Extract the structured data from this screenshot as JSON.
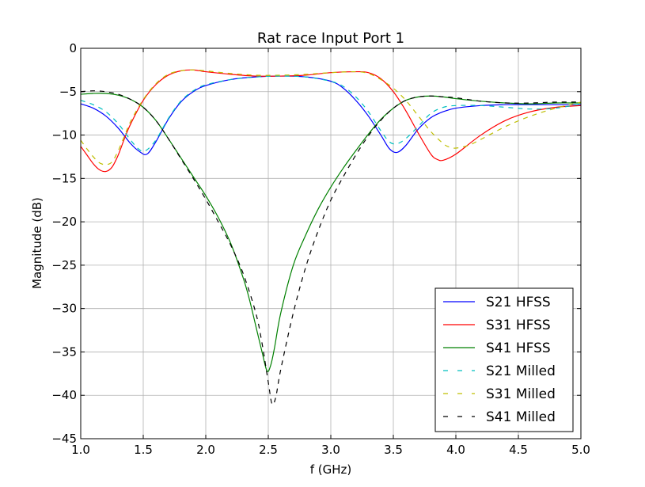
{
  "chart_data": {
    "type": "line",
    "title": "Rat race Input Port 1",
    "xlabel": "f (GHz)",
    "ylabel": "Magnitude (dB)",
    "xlim": [
      1.0,
      5.0
    ],
    "ylim": [
      -45,
      0
    ],
    "xticks": [
      "1.0",
      "1.5",
      "2.0",
      "2.5",
      "3.0",
      "3.5",
      "4.0",
      "4.5",
      "5.0"
    ],
    "yticks": [
      "0",
      "−5",
      "−10",
      "−15",
      "−20",
      "−25",
      "−30",
      "−35",
      "−40",
      "−45"
    ],
    "grid": true,
    "legend_position": "lower-right",
    "series": [
      {
        "name": "S21 HFSS",
        "color": "#0000ff",
        "style": "solid",
        "x": [
          1.0,
          1.1,
          1.2,
          1.3,
          1.4,
          1.47,
          1.53,
          1.6,
          1.7,
          1.8,
          1.9,
          2.0,
          2.2,
          2.4,
          2.6,
          2.8,
          3.0,
          3.1,
          3.2,
          3.3,
          3.4,
          3.47,
          3.53,
          3.6,
          3.7,
          3.8,
          3.9,
          4.0,
          4.2,
          4.4,
          4.6,
          4.8,
          5.0
        ],
        "y": [
          -6.4,
          -6.9,
          -7.8,
          -9.2,
          -11.0,
          -11.9,
          -12.2,
          -10.8,
          -8.2,
          -6.2,
          -5.0,
          -4.3,
          -3.6,
          -3.3,
          -3.2,
          -3.3,
          -3.8,
          -4.6,
          -6.0,
          -7.8,
          -10.0,
          -11.6,
          -12.0,
          -11.2,
          -9.3,
          -8.0,
          -7.3,
          -6.9,
          -6.6,
          -6.5,
          -6.5,
          -6.5,
          -6.5
        ]
      },
      {
        "name": "S31 HFSS",
        "color": "#ff0000",
        "style": "solid",
        "x": [
          1.0,
          1.05,
          1.1,
          1.15,
          1.2,
          1.25,
          1.3,
          1.35,
          1.4,
          1.5,
          1.6,
          1.7,
          1.8,
          1.9,
          2.0,
          2.2,
          2.4,
          2.6,
          2.8,
          3.0,
          3.2,
          3.3,
          3.4,
          3.5,
          3.6,
          3.7,
          3.8,
          3.85,
          3.9,
          4.0,
          4.2,
          4.4,
          4.6,
          4.8,
          5.0
        ],
        "y": [
          -11.3,
          -12.3,
          -13.3,
          -14.0,
          -14.2,
          -13.7,
          -12.3,
          -10.4,
          -8.7,
          -6.0,
          -4.2,
          -3.1,
          -2.6,
          -2.5,
          -2.7,
          -3.0,
          -3.2,
          -3.2,
          -3.1,
          -2.8,
          -2.7,
          -2.8,
          -3.5,
          -5.0,
          -7.2,
          -9.8,
          -12.2,
          -12.8,
          -12.9,
          -12.2,
          -10.0,
          -8.3,
          -7.3,
          -6.8,
          -6.6
        ]
      },
      {
        "name": "S41 HFSS",
        "color": "#008000",
        "style": "solid",
        "x": [
          1.0,
          1.1,
          1.2,
          1.3,
          1.4,
          1.5,
          1.6,
          1.7,
          1.8,
          1.9,
          2.0,
          2.1,
          2.2,
          2.3,
          2.35,
          2.4,
          2.45,
          2.49,
          2.52,
          2.55,
          2.6,
          2.7,
          2.8,
          2.9,
          3.0,
          3.1,
          3.2,
          3.3,
          3.4,
          3.5,
          3.6,
          3.7,
          3.8,
          3.9,
          4.0,
          4.2,
          4.4,
          4.6,
          4.8,
          5.0
        ],
        "y": [
          -5.3,
          -5.2,
          -5.2,
          -5.4,
          -5.9,
          -6.8,
          -8.3,
          -10.4,
          -12.6,
          -14.8,
          -17.0,
          -19.5,
          -22.5,
          -26.5,
          -29.0,
          -32.0,
          -35.0,
          -37.2,
          -36.5,
          -34.5,
          -30.5,
          -25.0,
          -21.5,
          -18.5,
          -16.0,
          -13.8,
          -11.8,
          -9.9,
          -8.2,
          -6.9,
          -6.0,
          -5.6,
          -5.5,
          -5.6,
          -5.8,
          -6.1,
          -6.3,
          -6.4,
          -6.3,
          -6.3
        ]
      },
      {
        "name": "S21 Milled",
        "color": "#00bfbf",
        "style": "dashed",
        "x": [
          1.0,
          1.1,
          1.2,
          1.3,
          1.4,
          1.47,
          1.52,
          1.6,
          1.7,
          1.8,
          1.9,
          2.0,
          2.2,
          2.4,
          2.6,
          2.8,
          3.0,
          3.1,
          3.2,
          3.3,
          3.4,
          3.47,
          3.53,
          3.6,
          3.7,
          3.8,
          3.9,
          4.0,
          4.2,
          4.4,
          4.6,
          4.8,
          5.0
        ],
        "y": [
          -6.0,
          -6.5,
          -7.3,
          -8.7,
          -10.6,
          -11.7,
          -11.8,
          -10.6,
          -8.1,
          -6.1,
          -4.9,
          -4.2,
          -3.6,
          -3.3,
          -3.2,
          -3.3,
          -3.8,
          -4.4,
          -5.6,
          -7.3,
          -9.5,
          -10.8,
          -11.0,
          -10.4,
          -9.0,
          -7.5,
          -6.8,
          -6.6,
          -6.6,
          -6.8,
          -7.0,
          -6.9,
          -6.4
        ]
      },
      {
        "name": "S31 Milled",
        "color": "#bfbf00",
        "style": "dashed",
        "x": [
          1.0,
          1.05,
          1.1,
          1.15,
          1.2,
          1.25,
          1.3,
          1.35,
          1.4,
          1.5,
          1.6,
          1.7,
          1.8,
          1.9,
          2.0,
          2.2,
          2.4,
          2.6,
          2.8,
          3.0,
          3.2,
          3.3,
          3.4,
          3.5,
          3.6,
          3.7,
          3.8,
          3.9,
          3.95,
          4.0,
          4.1,
          4.2,
          4.4,
          4.6,
          4.8,
          5.0
        ],
        "y": [
          -10.6,
          -11.6,
          -12.5,
          -13.2,
          -13.4,
          -13.1,
          -11.8,
          -10.1,
          -8.4,
          -5.9,
          -4.1,
          -3.0,
          -2.6,
          -2.5,
          -2.6,
          -2.9,
          -3.1,
          -3.1,
          -3.0,
          -2.8,
          -2.7,
          -2.9,
          -3.6,
          -4.6,
          -6.0,
          -7.8,
          -9.6,
          -11.0,
          -11.4,
          -11.5,
          -11.2,
          -10.5,
          -9.0,
          -7.8,
          -6.9,
          -6.2
        ]
      },
      {
        "name": "S41 Milled",
        "color": "#000000",
        "style": "dashed",
        "x": [
          1.0,
          1.1,
          1.2,
          1.3,
          1.4,
          1.5,
          1.6,
          1.7,
          1.8,
          1.9,
          2.0,
          2.1,
          2.2,
          2.3,
          2.4,
          2.45,
          2.5,
          2.53,
          2.56,
          2.6,
          2.7,
          2.8,
          2.9,
          3.0,
          3.1,
          3.2,
          3.3,
          3.4,
          3.5,
          3.6,
          3.7,
          3.8,
          3.9,
          4.0,
          4.2,
          4.4,
          4.6,
          4.8,
          5.0
        ],
        "y": [
          -5.0,
          -4.9,
          -5.0,
          -5.3,
          -5.9,
          -6.8,
          -8.3,
          -10.4,
          -12.7,
          -15.0,
          -17.4,
          -20.0,
          -22.7,
          -26.0,
          -30.5,
          -34.0,
          -38.5,
          -41.0,
          -40.2,
          -37.0,
          -30.5,
          -25.2,
          -21.0,
          -17.5,
          -14.8,
          -12.3,
          -10.1,
          -8.3,
          -6.9,
          -6.0,
          -5.6,
          -5.5,
          -5.6,
          -5.7,
          -6.1,
          -6.3,
          -6.3,
          -6.2,
          -6.2
        ]
      }
    ]
  }
}
